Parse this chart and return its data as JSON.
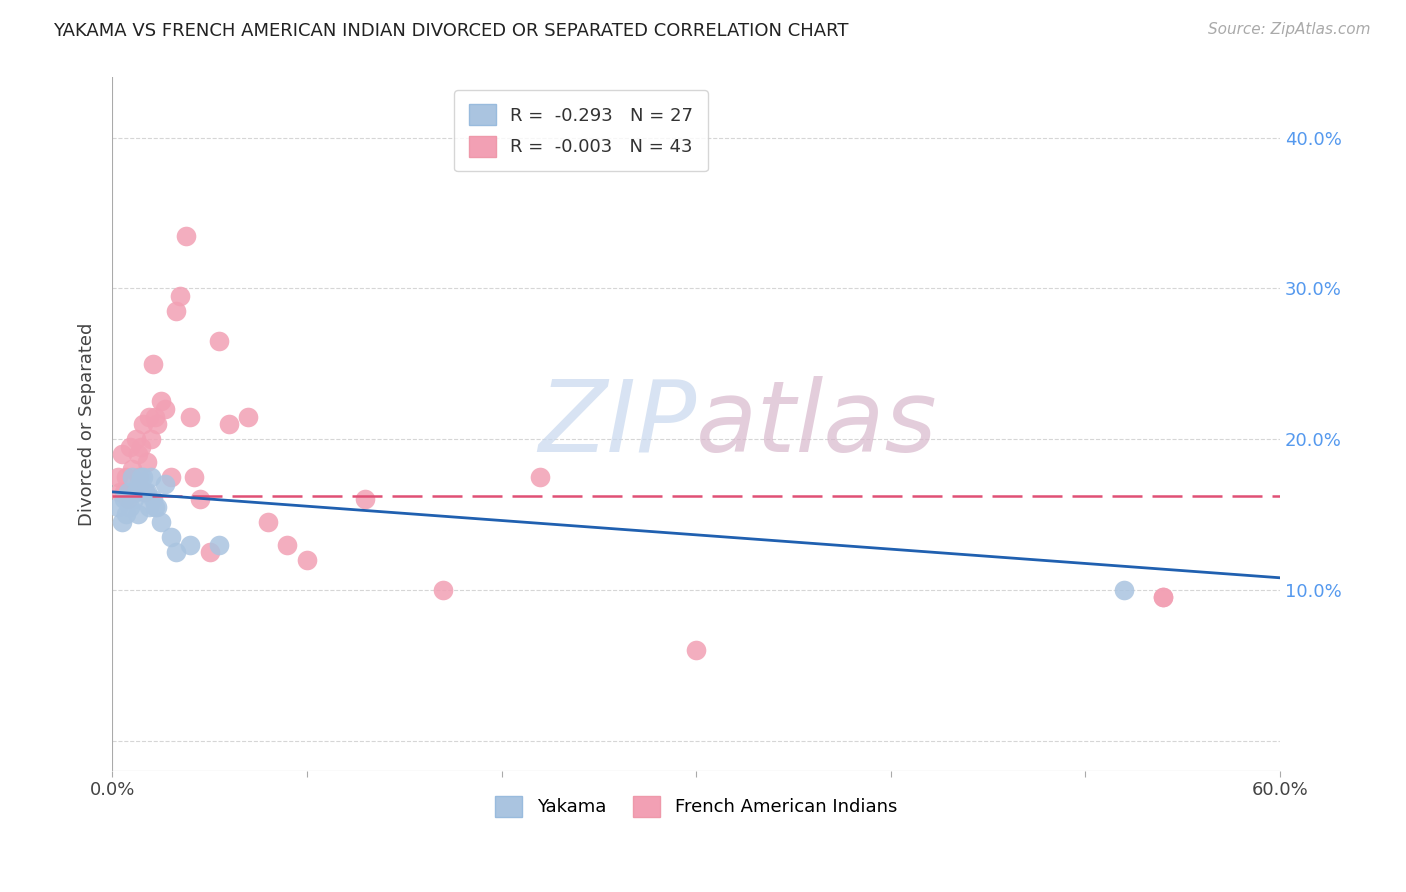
{
  "title": "YAKAMA VS FRENCH AMERICAN INDIAN DIVORCED OR SEPARATED CORRELATION CHART",
  "source": "Source: ZipAtlas.com",
  "xlabel": "",
  "ylabel": "Divorced or Separated",
  "xlim": [
    0.0,
    0.6
  ],
  "ylim": [
    -0.02,
    0.44
  ],
  "xtick_positions": [
    0.0,
    0.1,
    0.2,
    0.3,
    0.4,
    0.5,
    0.6
  ],
  "xticklabels": [
    "0.0%",
    "",
    "",
    "",
    "",
    "",
    "60.0%"
  ],
  "ytick_positions": [
    0.0,
    0.1,
    0.2,
    0.3,
    0.4
  ],
  "yticklabels_right": [
    "",
    "10.0%",
    "20.0%",
    "30.0%",
    "40.0%"
  ],
  "legend": {
    "yakama_R": "-0.293",
    "yakama_N": "27",
    "french_R": "-0.003",
    "french_N": "43"
  },
  "yakama_color": "#aac4e0",
  "french_color": "#f2a0b4",
  "yakama_line_color": "#2060b0",
  "french_line_color": "#e05075",
  "watermark": "ZIPatlas",
  "yakama_x": [
    0.003,
    0.005,
    0.006,
    0.007,
    0.008,
    0.009,
    0.01,
    0.011,
    0.012,
    0.013,
    0.014,
    0.015,
    0.016,
    0.017,
    0.018,
    0.019,
    0.02,
    0.021,
    0.022,
    0.023,
    0.025,
    0.027,
    0.03,
    0.033,
    0.04,
    0.055,
    0.52
  ],
  "yakama_y": [
    0.155,
    0.145,
    0.16,
    0.15,
    0.165,
    0.155,
    0.175,
    0.16,
    0.165,
    0.15,
    0.17,
    0.175,
    0.175,
    0.165,
    0.165,
    0.155,
    0.175,
    0.16,
    0.155,
    0.155,
    0.145,
    0.17,
    0.135,
    0.125,
    0.13,
    0.13,
    0.1
  ],
  "french_x": [
    0.003,
    0.004,
    0.005,
    0.006,
    0.007,
    0.008,
    0.009,
    0.01,
    0.011,
    0.012,
    0.013,
    0.014,
    0.015,
    0.016,
    0.017,
    0.018,
    0.019,
    0.02,
    0.021,
    0.022,
    0.023,
    0.025,
    0.027,
    0.03,
    0.033,
    0.035,
    0.038,
    0.04,
    0.042,
    0.045,
    0.05,
    0.055,
    0.06,
    0.07,
    0.08,
    0.09,
    0.1,
    0.13,
    0.17,
    0.22,
    0.3,
    0.54,
    0.54
  ],
  "french_y": [
    0.175,
    0.165,
    0.19,
    0.165,
    0.175,
    0.16,
    0.195,
    0.18,
    0.165,
    0.2,
    0.19,
    0.175,
    0.195,
    0.21,
    0.165,
    0.185,
    0.215,
    0.2,
    0.25,
    0.215,
    0.21,
    0.225,
    0.22,
    0.175,
    0.285,
    0.295,
    0.335,
    0.215,
    0.175,
    0.16,
    0.125,
    0.265,
    0.21,
    0.215,
    0.145,
    0.13,
    0.12,
    0.16,
    0.1,
    0.175,
    0.06,
    0.095,
    0.095
  ],
  "background_color": "#ffffff",
  "grid_color": "#cccccc",
  "french_line_y0": 0.162,
  "french_line_y1": 0.162,
  "yakama_line_y0": 0.165,
  "yakama_line_y1": 0.108
}
